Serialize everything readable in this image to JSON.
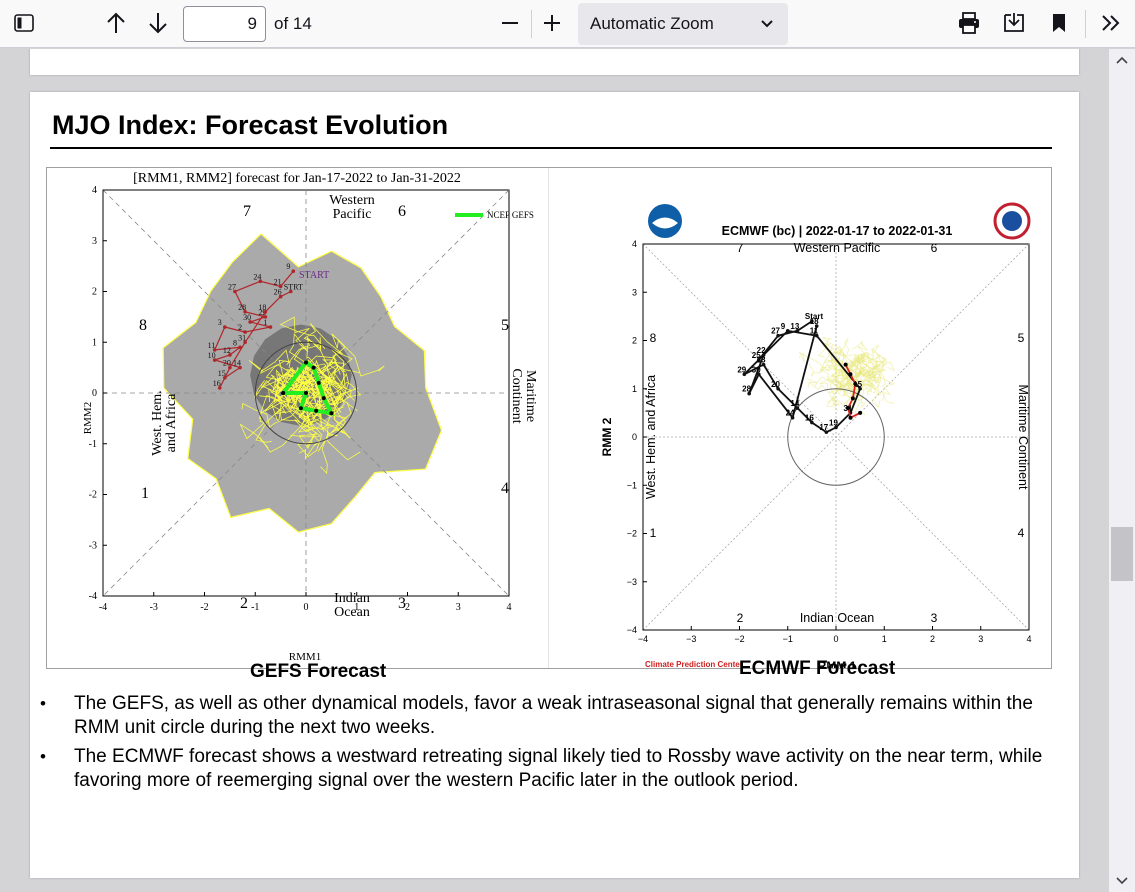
{
  "toolbar": {
    "page_current": "9",
    "page_of": "of 14",
    "zoom_label": "Automatic Zoom"
  },
  "slide": {
    "title": "MJO Index: Forecast Evolution",
    "caption_left": "GEFS Forecast",
    "caption_right": "ECMWF Forecast",
    "bullets": [
      "The GEFS, as well as other dynamical models, favor a weak intraseasonal signal that generally remains within the RMM unit circle during the next two weeks.",
      "The ECMWF forecast shows a westward retreating signal likely tied to Rossby wave activity on the near term, while favoring more of reemerging signal over the western Pacific later in the outlook period."
    ]
  },
  "chart_data": [
    {
      "type": "line",
      "title": "[RMM1, RMM2] forecast for Jan-17-2022 to Jan-31-2022",
      "xlabel": "RMM1",
      "ylabel": "RMM2",
      "xlim": [
        -4,
        4
      ],
      "ylim": [
        -4,
        4
      ],
      "xticks": [
        "-4",
        "-3",
        "-2",
        "-1",
        "0",
        "1",
        "2",
        "3",
        "4"
      ],
      "yticks": [
        "-4",
        "-3",
        "-2",
        "-1",
        "0",
        "1",
        "2",
        "3",
        "4"
      ],
      "legend": "NCEP GEFS",
      "legend_color": "#22ee22",
      "phases": [
        "1",
        "2",
        "3",
        "4",
        "5",
        "6",
        "7",
        "8"
      ],
      "regions": {
        "top": [
          "Western",
          "Pacific"
        ],
        "bottom": [
          "Indian",
          "Ocean"
        ],
        "left": [
          "West. Hem.",
          "and Africa"
        ],
        "right": [
          "Maritime",
          "Continent"
        ]
      },
      "start_label": "START",
      "observed": {
        "x": [
          -0.25,
          -0.5,
          -0.9,
          -1.4,
          -1.2,
          -0.8,
          -1.1,
          -0.7,
          -1.2,
          -1.6,
          -1.8,
          -1.3,
          -1.5,
          -1.8,
          -1.3,
          -1.6,
          -1.7,
          -1.5,
          -1.2,
          -0.8,
          -0.5,
          -0.3
        ],
        "y": [
          2.4,
          2.1,
          2.2,
          2.0,
          1.6,
          1.5,
          1.4,
          1.3,
          1.2,
          1.3,
          0.85,
          0.9,
          0.75,
          0.65,
          0.5,
          0.3,
          0.1,
          0.5,
          1.0,
          1.6,
          1.9,
          2.0
        ],
        "labels": [
          "9",
          "21",
          "24",
          "27",
          "28",
          "29",
          "30",
          "1",
          "2",
          "3",
          "11",
          "8",
          "12",
          "10",
          "14",
          "15",
          "16",
          "20",
          "31",
          "18",
          "26",
          "STRT"
        ]
      },
      "forecast_mean": {
        "x": [
          -0.45,
          0.0,
          0.15,
          0.25,
          0.35,
          0.5,
          0.2,
          -0.1,
          0.0,
          -0.45
        ],
        "y": [
          0.0,
          0.6,
          0.5,
          0.2,
          -0.1,
          -0.4,
          -0.35,
          -0.3,
          0.0,
          0.0
        ]
      },
      "unit_circle_radius": 1,
      "ensemble_color": "#ffff44",
      "spread_color": "#aaaaaa"
    },
    {
      "type": "line",
      "title": "ECMWF (bc) | 2022-01-17 to 2022-01-31",
      "xlabel": "RMM 1",
      "ylabel": "RMM 2",
      "xlim": [
        -4,
        4
      ],
      "ylim": [
        -4,
        4
      ],
      "xticks": [
        "−4",
        "−3",
        "−2",
        "−1",
        "0",
        "1",
        "2",
        "3",
        "4"
      ],
      "yticks": [
        "−4",
        "−3",
        "−2",
        "−1",
        "0",
        "1",
        "2",
        "3",
        "4"
      ],
      "phases": [
        "1",
        "2",
        "3",
        "4",
        "5",
        "6",
        "7",
        "8"
      ],
      "regions": {
        "top": "Western Pacific",
        "bottom": "Indian Ocean",
        "left": "West. Hem. and Africa",
        "right": "Maritime Continent"
      },
      "footer": "Climate Prediction Center",
      "observed": {
        "x": [
          -0.5,
          -0.8,
          -1.2,
          -1.6,
          -1.9,
          -1.5,
          -1.2,
          -0.8,
          -0.5,
          -0.2,
          0.0,
          0.3,
          0.5,
          -0.4,
          -1.0,
          -1.5,
          -1.8,
          -1.6,
          -0.9,
          -0.4
        ],
        "y": [
          2.4,
          2.2,
          2.1,
          1.6,
          1.3,
          1.5,
          1.0,
          0.6,
          0.3,
          0.1,
          0.2,
          0.5,
          1.0,
          2.1,
          2.2,
          1.7,
          0.9,
          1.3,
          0.4,
          2.3
        ],
        "labels": [
          "Start",
          "13",
          "27",
          "25",
          "29",
          "23",
          "20",
          "14",
          "16",
          "17",
          "19",
          "31",
          "15",
          "11",
          "9",
          "22",
          "28",
          "30",
          "24",
          "18"
        ]
      },
      "forecast_mean": {
        "x": [
          0.2,
          0.3,
          0.4,
          0.35,
          0.25,
          0.3,
          0.5
        ],
        "y": [
          1.5,
          1.3,
          1.1,
          0.8,
          0.6,
          0.4,
          0.5
        ]
      },
      "unit_circle_radius": 1,
      "ensemble_color": "#e8e87a"
    }
  ]
}
